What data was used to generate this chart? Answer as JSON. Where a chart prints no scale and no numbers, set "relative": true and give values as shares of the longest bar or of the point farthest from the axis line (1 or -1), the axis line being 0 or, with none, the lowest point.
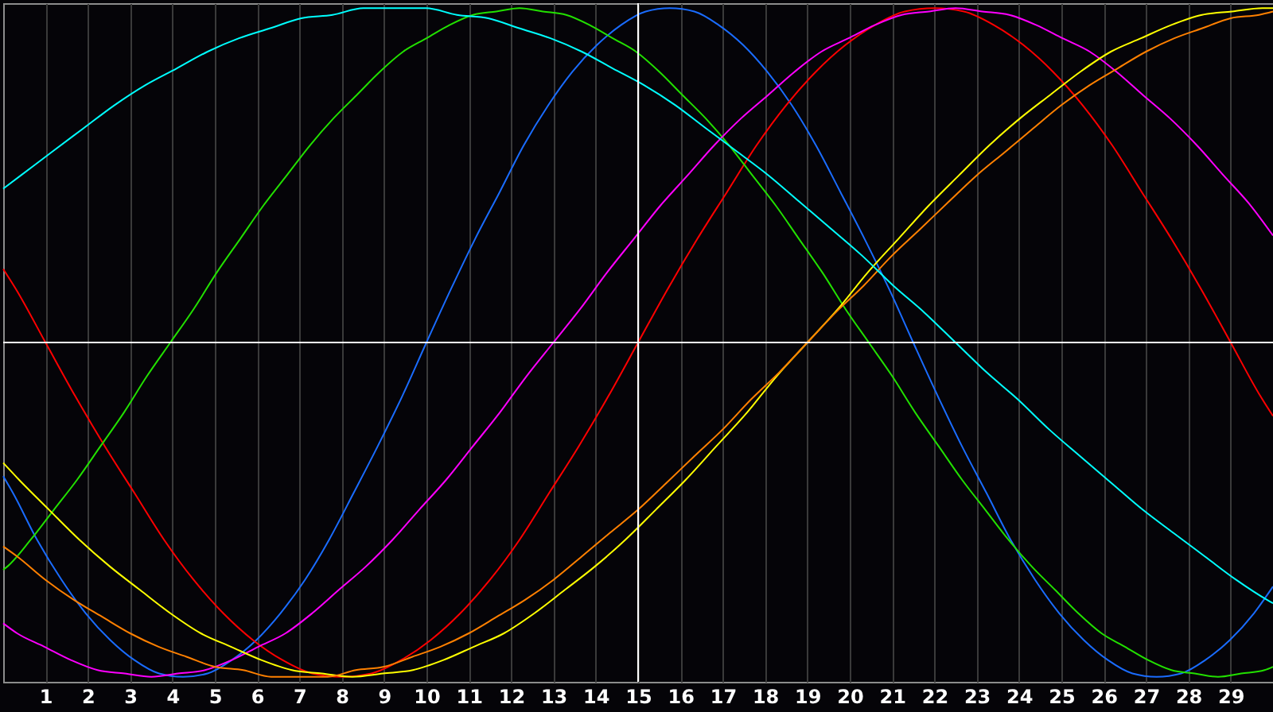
{
  "chart_data": {
    "type": "line",
    "relative": true,
    "xlim": [
      0,
      30
    ],
    "xticks": [
      1,
      2,
      3,
      4,
      5,
      6,
      7,
      8,
      9,
      10,
      11,
      12,
      13,
      14,
      15,
      16,
      17,
      18,
      19,
      20,
      21,
      22,
      23,
      24,
      25,
      26,
      27,
      28,
      29
    ],
    "grid": "x",
    "tick_labels": "x",
    "ref_lines": [
      {
        "axis": "x",
        "value": 15,
        "color": "#ffffff"
      },
      {
        "axis": "y",
        "value": 0,
        "color": "#ffffff"
      }
    ],
    "series": [
      {
        "color": "#1a6cff",
        "x": [
          0,
          0.23,
          0.8,
          1.38,
          1.95,
          2.53,
          3.1,
          3.68,
          4.25,
          4.83,
          5.4,
          5.98,
          6.55,
          7.13,
          7.7,
          8.28,
          8.85,
          9.43,
          10,
          10.58,
          11.15,
          11.73,
          12.3,
          12.88,
          13.45,
          14.03,
          14.6,
          15.18,
          15.75,
          16.33,
          16.9,
          17.48,
          18.05,
          18.63,
          19.2,
          19.78,
          20.35,
          20.93,
          21.5,
          22.08,
          22.65,
          23.23,
          23.8,
          24.38,
          24.95,
          25.53,
          26.1,
          26.68,
          27.25,
          27.83,
          28.4,
          28.98,
          29.55,
          30
        ],
        "values": [
          -0.4,
          -0.45,
          -0.59,
          -0.71,
          -0.81,
          -0.89,
          -0.95,
          -0.99,
          -1,
          -0.99,
          -0.95,
          -0.89,
          -0.81,
          -0.71,
          -0.59,
          -0.45,
          -0.31,
          -0.16,
          0,
          0.16,
          0.31,
          0.45,
          0.59,
          0.71,
          0.81,
          0.89,
          0.95,
          0.99,
          1,
          0.99,
          0.95,
          0.89,
          0.81,
          0.71,
          0.59,
          0.45,
          0.31,
          0.16,
          0,
          -0.16,
          -0.31,
          -0.45,
          -0.59,
          -0.71,
          -0.81,
          -0.89,
          -0.95,
          -0.99,
          -1,
          -0.99,
          -0.95,
          -0.89,
          -0.81,
          -0.73
        ]
      },
      {
        "color": "#ff0000",
        "x": [
          0,
          0.3,
          1,
          1.7,
          2.4,
          3.1,
          3.8,
          4.5,
          5.2,
          5.9,
          6.6,
          7.3,
          8,
          8.7,
          9.4,
          10.1,
          10.8,
          11.5,
          12.2,
          12.9,
          13.6,
          14.3,
          15,
          15.7,
          16.4,
          17.1,
          17.8,
          18.5,
          19.2,
          19.9,
          20.6,
          21.3,
          22,
          22.7,
          23.4,
          24.1,
          24.8,
          25.5,
          26.2,
          26.9,
          27.6,
          28.3,
          29,
          29.7,
          30
        ],
        "values": [
          0.22,
          0.16,
          0,
          -0.16,
          -0.31,
          -0.45,
          -0.59,
          -0.71,
          -0.81,
          -0.89,
          -0.95,
          -0.99,
          -1,
          -0.99,
          -0.95,
          -0.89,
          -0.81,
          -0.71,
          -0.59,
          -0.45,
          -0.31,
          -0.16,
          0,
          0.16,
          0.31,
          0.45,
          0.59,
          0.71,
          0.81,
          0.89,
          0.95,
          0.99,
          1,
          0.99,
          0.95,
          0.89,
          0.81,
          0.71,
          0.59,
          0.45,
          0.31,
          0.16,
          0,
          -0.16,
          -0.22
        ]
      },
      {
        "color": "#22e000",
        "x": [
          0,
          0.1,
          0.65,
          1.2,
          1.75,
          2.3,
          2.85,
          3.4,
          3.95,
          4.5,
          5.05,
          5.6,
          6.15,
          6.7,
          7.25,
          7.8,
          8.35,
          8.9,
          9.45,
          10,
          10.55,
          11.1,
          11.65,
          12.2,
          12.75,
          13.3,
          13.85,
          14.4,
          14.95,
          15.5,
          16.05,
          16.6,
          17.15,
          17.7,
          18.25,
          18.8,
          19.35,
          19.9,
          20.45,
          21,
          21.55,
          22.1,
          22.65,
          23.2,
          23.75,
          24.3,
          24.85,
          25.4,
          25.95,
          26.5,
          27.05,
          27.6,
          28.15,
          28.7,
          29.25,
          29.8,
          30
        ],
        "values": [
          -0.68,
          -0.67,
          -0.59,
          -0.5,
          -0.41,
          -0.31,
          -0.21,
          -0.1,
          0,
          0.1,
          0.21,
          0.31,
          0.41,
          0.5,
          0.59,
          0.67,
          0.74,
          0.81,
          0.87,
          0.91,
          0.95,
          0.98,
          0.99,
          1,
          0.99,
          0.98,
          0.95,
          0.91,
          0.87,
          0.81,
          0.74,
          0.67,
          0.59,
          0.5,
          0.41,
          0.31,
          0.21,
          0.1,
          0,
          -0.1,
          -0.21,
          -0.31,
          -0.41,
          -0.5,
          -0.59,
          -0.67,
          -0.74,
          -0.81,
          -0.87,
          -0.91,
          -0.95,
          -0.98,
          -0.99,
          -1,
          -0.99,
          -0.98,
          -0.97
        ]
      },
      {
        "color": "#ff00ff",
        "x": [
          0,
          0.33,
          0.97,
          1.6,
          2.23,
          2.87,
          3.5,
          4.13,
          4.77,
          5.4,
          6.03,
          6.67,
          7.3,
          7.93,
          8.57,
          9.2,
          9.83,
          10.47,
          11.1,
          11.73,
          12.37,
          13,
          13.63,
          14.27,
          14.9,
          15.53,
          16.17,
          16.8,
          17.43,
          18.07,
          18.7,
          19.33,
          19.97,
          20.6,
          21.23,
          21.87,
          22.5,
          23.13,
          23.77,
          24.4,
          25.03,
          25.67,
          26.3,
          26.93,
          27.57,
          28.2,
          28.83,
          29.47,
          30
        ],
        "values": [
          -0.84,
          -0.87,
          -0.91,
          -0.95,
          -0.98,
          -0.99,
          -1,
          -0.99,
          -0.98,
          -0.95,
          -0.91,
          -0.87,
          -0.81,
          -0.74,
          -0.67,
          -0.59,
          -0.5,
          -0.41,
          -0.31,
          -0.21,
          -0.1,
          0,
          0.1,
          0.21,
          0.31,
          0.41,
          0.5,
          0.59,
          0.67,
          0.74,
          0.81,
          0.87,
          0.91,
          0.95,
          0.98,
          0.99,
          1,
          0.99,
          0.98,
          0.95,
          0.91,
          0.87,
          0.81,
          0.74,
          0.67,
          0.59,
          0.5,
          0.41,
          0.32
        ]
      },
      {
        "color": "#ffff00",
        "x": [
          0,
          0.37,
          1.08,
          1.8,
          2.52,
          3.23,
          3.95,
          4.67,
          5.38,
          6.1,
          6.82,
          7.53,
          8.25,
          8.97,
          9.68,
          10.4,
          11.12,
          11.83,
          12.55,
          13.27,
          13.98,
          14.7,
          15.42,
          16.13,
          16.85,
          17.57,
          18.28,
          19,
          19.72,
          20.43,
          21.15,
          21.87,
          22.58,
          23.3,
          24.02,
          24.73,
          25.45,
          26.17,
          26.88,
          27.6,
          28.32,
          29.03,
          29.75,
          30
        ],
        "values": [
          -0.36,
          -0.41,
          -0.5,
          -0.59,
          -0.67,
          -0.74,
          -0.81,
          -0.87,
          -0.91,
          -0.95,
          -0.98,
          -0.99,
          -1,
          -0.99,
          -0.98,
          -0.95,
          -0.91,
          -0.87,
          -0.81,
          -0.74,
          -0.67,
          -0.59,
          -0.5,
          -0.41,
          -0.31,
          -0.21,
          -0.1,
          0,
          0.1,
          0.21,
          0.31,
          0.41,
          0.5,
          0.59,
          0.67,
          0.74,
          0.81,
          0.87,
          0.91,
          0.95,
          0.98,
          0.99,
          1,
          1
        ]
      },
      {
        "color": "#ff8000",
        "x": [
          0,
          0.33,
          1,
          1.67,
          2.33,
          3,
          3.67,
          4.33,
          5,
          5.67,
          6.33,
          7,
          7.67,
          8.33,
          9,
          9.67,
          10.33,
          11,
          11.67,
          12.33,
          13,
          13.67,
          14.33,
          15,
          15.67,
          16.33,
          17,
          17.67,
          18.33,
          19,
          19.67,
          20.33,
          21,
          21.67,
          22.33,
          23,
          23.67,
          24.33,
          25,
          25.67,
          26.33,
          27,
          27.67,
          28.33,
          29,
          29.67,
          30
        ],
        "values": [
          -0.61,
          -0.64,
          -0.71,
          -0.77,
          -0.82,
          -0.87,
          -0.91,
          -0.94,
          -0.97,
          -0.98,
          -1,
          -1,
          -1,
          -0.98,
          -0.97,
          -0.94,
          -0.91,
          -0.87,
          -0.82,
          -0.77,
          -0.71,
          -0.64,
          -0.57,
          -0.5,
          -0.42,
          -0.34,
          -0.26,
          -0.17,
          -0.09,
          0,
          0.09,
          0.17,
          0.26,
          0.34,
          0.42,
          0.5,
          0.57,
          0.64,
          0.71,
          0.77,
          0.82,
          0.87,
          0.91,
          0.94,
          0.97,
          0.98,
          0.99
        ]
      },
      {
        "color": "#00ffff",
        "x": [
          0,
          0.42,
          1.15,
          1.89,
          2.63,
          3.36,
          4.1,
          4.83,
          5.57,
          6.31,
          7.04,
          7.78,
          8.51,
          9.25,
          9.99,
          10.72,
          11.46,
          12.19,
          12.93,
          13.67,
          14.4,
          15.14,
          15.88,
          16.61,
          17.35,
          18.08,
          18.82,
          19.56,
          20.29,
          21.03,
          21.76,
          22.5,
          23.24,
          23.97,
          24.71,
          25.44,
          26.18,
          26.92,
          27.65,
          28.39,
          29.13,
          29.86,
          30
        ],
        "values": [
          0.46,
          0.5,
          0.57,
          0.64,
          0.71,
          0.77,
          0.82,
          0.87,
          0.91,
          0.94,
          0.97,
          0.98,
          1,
          1,
          1,
          0.98,
          0.97,
          0.94,
          0.91,
          0.87,
          0.82,
          0.77,
          0.71,
          0.64,
          0.57,
          0.5,
          0.42,
          0.34,
          0.26,
          0.17,
          0.09,
          0,
          -0.09,
          -0.17,
          -0.26,
          -0.34,
          -0.42,
          -0.5,
          -0.57,
          -0.64,
          -0.71,
          -0.77,
          -0.78
        ]
      }
    ]
  }
}
